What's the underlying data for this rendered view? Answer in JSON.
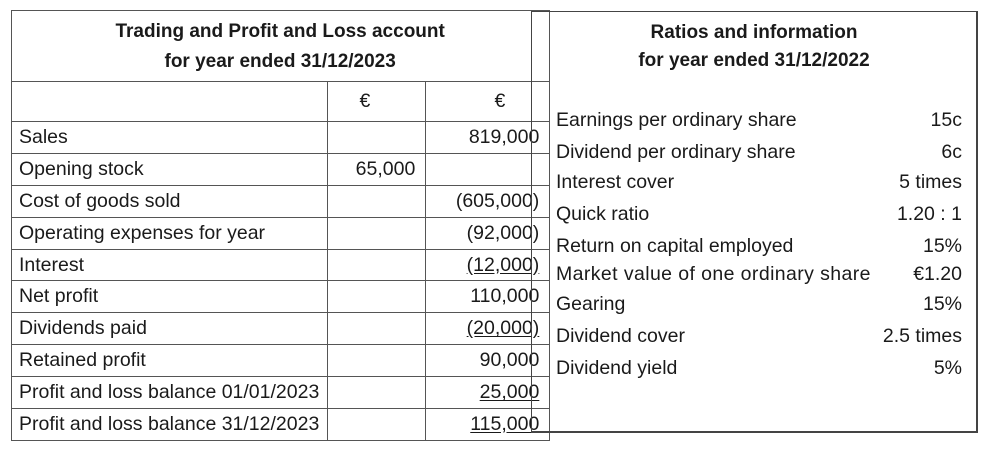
{
  "pl": {
    "title_line1": "Trading and Profit and Loss account",
    "title_line2": "for year ended 31/12/2023",
    "currency1": "€",
    "currency2": "€",
    "rows": [
      {
        "label": "Sales",
        "col1": "",
        "col2": "819,000",
        "underline": false
      },
      {
        "label": "Opening stock",
        "col1": "65,000",
        "col2": "",
        "underline": false
      },
      {
        "label": "Cost of goods sold",
        "col1": "",
        "col2": "(605,000)",
        "underline": false
      },
      {
        "label": "Operating expenses for year",
        "col1": "",
        "col2": "(92,000)",
        "underline": false
      },
      {
        "label": "Interest",
        "col1": "",
        "col2": "(12,000)",
        "underline": true
      },
      {
        "label": "Net profit",
        "col1": "",
        "col2": "110,000",
        "underline": false
      },
      {
        "label": "Dividends paid",
        "col1": "",
        "col2": "(20,000)",
        "underline": true
      },
      {
        "label": "Retained profit",
        "col1": "",
        "col2": "90,000",
        "underline": false
      },
      {
        "label": "Profit and loss balance 01/01/2023",
        "col1": "",
        "col2": "25,000",
        "underline": true
      },
      {
        "label": "Profit and loss balance 31/12/2023",
        "col1": "",
        "col2": "115,000",
        "underline": true
      }
    ]
  },
  "ratios": {
    "title_line1": "Ratios and information",
    "title_line2": "for year ended 31/12/2022",
    "items": [
      {
        "label": "Earnings per ordinary share",
        "value": "15c"
      },
      {
        "label": "Dividend per ordinary share",
        "value": "6c"
      },
      {
        "label": "Interest cover",
        "value": "5 times"
      },
      {
        "label": "Quick ratio",
        "value": "1.20 : 1"
      },
      {
        "label": "Return on capital employed",
        "value": "15%"
      },
      {
        "label": "Market value of one ordinary share",
        "value": "€1.20"
      },
      {
        "label": "Gearing",
        "value": "15%"
      },
      {
        "label": "Dividend cover",
        "value": "2.5 times"
      },
      {
        "label": "Dividend yield",
        "value": "5%"
      }
    ]
  }
}
